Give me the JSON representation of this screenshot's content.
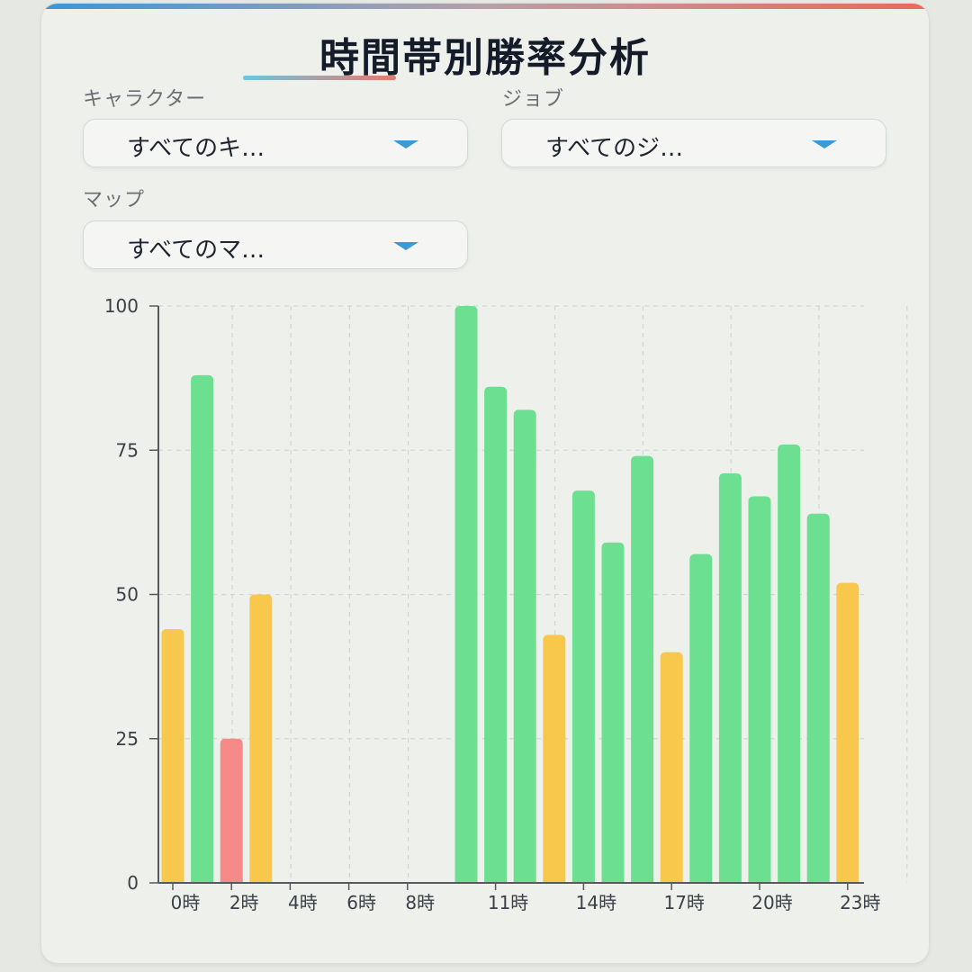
{
  "title": "時間帯別勝率分析",
  "filters": {
    "character": {
      "label": "キャラクター",
      "value": "すべてのキ…"
    },
    "job": {
      "label": "ジョブ",
      "value": "すべてのジ…"
    },
    "map": {
      "label": "マップ",
      "value": "すべてのマ…"
    }
  },
  "icons": {
    "dropdown": "chevron-down-icon"
  },
  "colors": {
    "high": "#6ce090",
    "mid": "#f7c84c",
    "low": "#f58a88",
    "axis": "#555a60",
    "grid": "#d3d6d2"
  },
  "chart_data": {
    "type": "bar",
    "categories": [
      "0時",
      "1時",
      "2時",
      "3時",
      "4時",
      "5時",
      "6時",
      "7時",
      "8時",
      "9時",
      "10時",
      "11時",
      "12時",
      "13時",
      "14時",
      "15時",
      "16時",
      "17時",
      "18時",
      "19時",
      "20時",
      "21時",
      "22時",
      "23時"
    ],
    "tick_labels": [
      "0時",
      "2時",
      "4時",
      "6時",
      "8時",
      "11時",
      "14時",
      "17時",
      "20時",
      "23時"
    ],
    "series": [
      {
        "values": [
          44,
          88,
          25,
          50,
          null,
          null,
          null,
          null,
          null,
          null,
          100,
          86,
          82,
          43,
          68,
          59,
          74,
          40,
          57,
          71,
          67,
          76,
          64,
          52
        ]
      }
    ],
    "ylim": [
      0,
      100
    ],
    "yticks": [
      0,
      25,
      50,
      75,
      100
    ],
    "grid": true,
    "legend": "none"
  }
}
